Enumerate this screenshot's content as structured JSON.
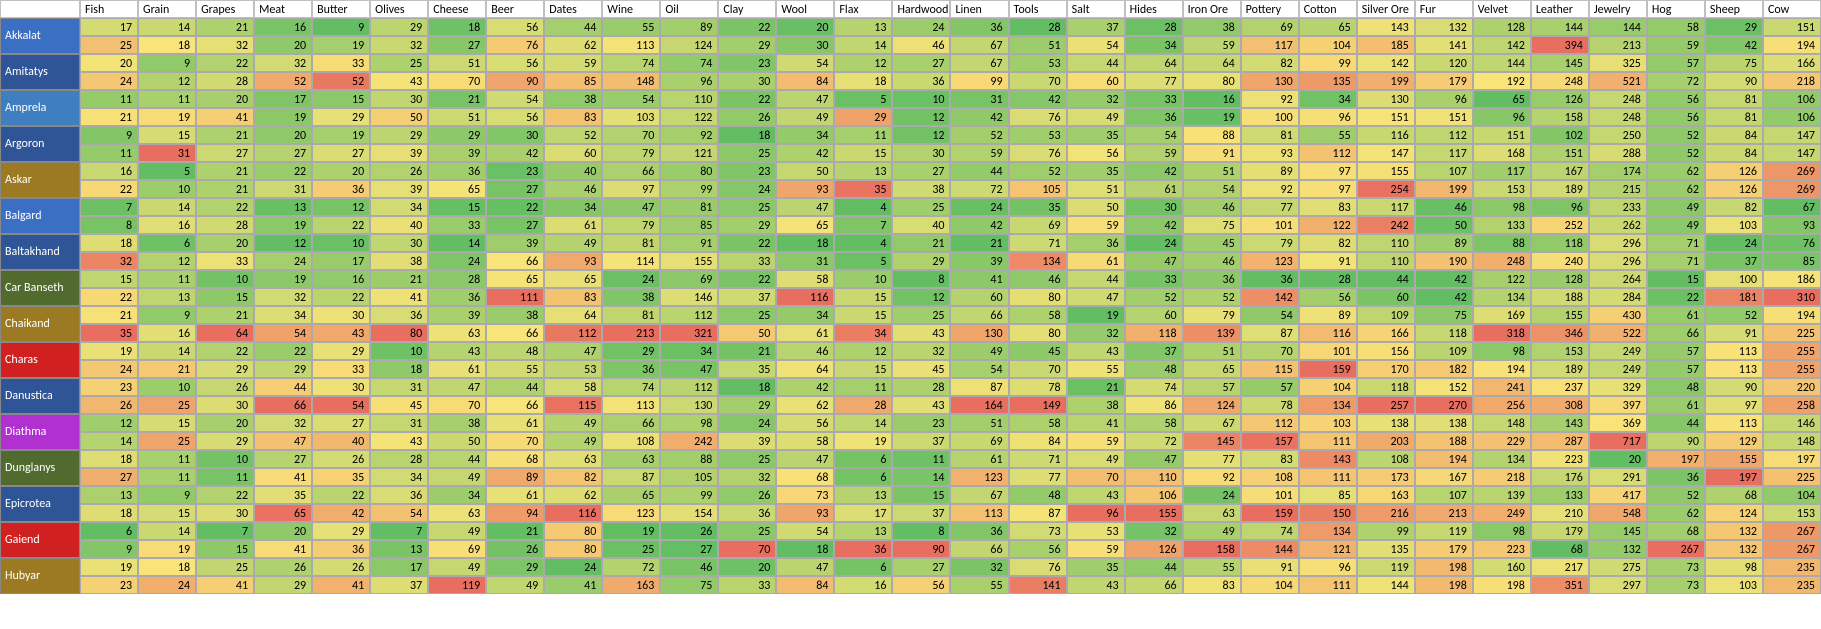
{
  "columns": [
    "Fish",
    "Grain",
    "Grapes",
    "Meat",
    "Butter",
    "Olives",
    "Cheese",
    "Beer",
    "Dates",
    "Wine",
    "Oil",
    "Clay",
    "Wool",
    "Flax",
    "Hardwood",
    "Linen",
    "Tools",
    "Salt",
    "Hides",
    "Iron Ore",
    "Pottery",
    "Cotton",
    "Silver Ore",
    "Fur",
    "Velvet",
    "Leather",
    "Jewelry",
    "Hog",
    "Sheep",
    "Cow"
  ],
  "row_colors": {
    "Akkalat": "#3b6fc4",
    "Amitatys": "#2f5597",
    "Amprela": "#3f7fbf",
    "Argoron": "#2f5597",
    "Askar": "#9c7a24",
    "Balgard": "#3b6fc4",
    "Baltakhand": "#2f5597",
    "Car Banseth": "#516b2f",
    "Chaikand": "#9c7a24",
    "Charas": "#d02020",
    "Danustica": "#2f5597",
    "Diathma": "#b030d0",
    "Dunglanys": "#516b2f",
    "Epicrotea": "#2f5597",
    "Gaiend": "#d02020",
    "Hubyar": "#9c7a24"
  },
  "heat_palette": {
    "low": [
      99,
      190,
      99
    ],
    "mid": [
      248,
      228,
      120
    ],
    "high": [
      232,
      110,
      95
    ]
  },
  "rows": [
    {
      "name": "Akkalat",
      "a": [
        17,
        14,
        21,
        16,
        9,
        29,
        18,
        56,
        44,
        55,
        89,
        22,
        20,
        13,
        24,
        36,
        28,
        37,
        28,
        38,
        69,
        65,
        143,
        132,
        128,
        144,
        144,
        58,
        29,
        151
      ],
      "b": [
        25,
        18,
        32,
        20,
        19,
        32,
        27,
        76,
        62,
        113,
        124,
        29,
        30,
        14,
        46,
        67,
        51,
        54,
        34,
        59,
        117,
        104,
        185,
        141,
        142,
        394,
        213,
        59,
        42,
        194
      ]
    },
    {
      "name": "Amitatys",
      "a": [
        20,
        9,
        22,
        32,
        33,
        25,
        51,
        56,
        59,
        74,
        74,
        23,
        54,
        12,
        27,
        67,
        53,
        44,
        64,
        64,
        82,
        99,
        142,
        120,
        144,
        145,
        325,
        57,
        75,
        166
      ],
      "b": [
        24,
        12,
        28,
        52,
        52,
        43,
        70,
        90,
        85,
        148,
        96,
        30,
        84,
        18,
        36,
        99,
        70,
        60,
        77,
        80,
        130,
        135,
        199,
        179,
        192,
        248,
        521,
        72,
        90,
        218
      ]
    },
    {
      "name": "Amprela",
      "a": [
        11,
        11,
        20,
        17,
        15,
        30,
        21,
        54,
        38,
        54,
        110,
        22,
        47,
        5,
        10,
        31,
        42,
        32,
        33,
        16,
        92,
        34,
        130,
        96,
        65,
        126,
        248,
        56,
        81,
        106
      ],
      "b": [
        21,
        19,
        41,
        19,
        29,
        50,
        51,
        56,
        83,
        103,
        122,
        26,
        49,
        29,
        12,
        42,
        76,
        49,
        36,
        19,
        100,
        96,
        151,
        151,
        96,
        158,
        248,
        56,
        81,
        106
      ]
    },
    {
      "name": "Argoron",
      "a": [
        9,
        15,
        21,
        20,
        19,
        29,
        29,
        30,
        52,
        70,
        92,
        18,
        34,
        11,
        12,
        52,
        53,
        35,
        54,
        88,
        81,
        55,
        116,
        112,
        151,
        102,
        250,
        52,
        84,
        147
      ],
      "b": [
        11,
        31,
        27,
        27,
        27,
        39,
        39,
        42,
        60,
        79,
        121,
        25,
        42,
        15,
        30,
        59,
        76,
        56,
        59,
        91,
        93,
        112,
        147,
        117,
        168,
        151,
        288,
        52,
        84,
        147
      ]
    },
    {
      "name": "Askar",
      "a": [
        16,
        5,
        21,
        22,
        20,
        26,
        36,
        23,
        40,
        66,
        80,
        23,
        50,
        13,
        27,
        44,
        52,
        35,
        42,
        51,
        89,
        97,
        155,
        107,
        117,
        167,
        174,
        62,
        126,
        269
      ],
      "b": [
        22,
        10,
        21,
        31,
        36,
        39,
        65,
        27,
        46,
        97,
        99,
        24,
        93,
        35,
        38,
        72,
        105,
        51,
        61,
        54,
        92,
        97,
        254,
        199,
        153,
        189,
        215,
        62,
        126,
        269
      ]
    },
    {
      "name": "Balgard",
      "a": [
        7,
        14,
        22,
        13,
        12,
        34,
        15,
        22,
        34,
        47,
        81,
        25,
        47,
        4,
        25,
        24,
        35,
        50,
        30,
        46,
        77,
        83,
        117,
        46,
        98,
        96,
        233,
        49,
        82,
        67
      ],
      "b": [
        8,
        16,
        28,
        19,
        22,
        40,
        33,
        27,
        61,
        79,
        85,
        29,
        65,
        7,
        40,
        42,
        69,
        59,
        42,
        75,
        101,
        122,
        242,
        50,
        133,
        252,
        262,
        49,
        103,
        93
      ]
    },
    {
      "name": "Baltakhand",
      "a": [
        18,
        6,
        20,
        12,
        10,
        30,
        14,
        39,
        49,
        81,
        91,
        22,
        18,
        4,
        21,
        21,
        71,
        36,
        24,
        45,
        79,
        82,
        110,
        89,
        88,
        118,
        296,
        71,
        24,
        76
      ],
      "b": [
        32,
        12,
        33,
        24,
        17,
        38,
        24,
        66,
        93,
        114,
        155,
        33,
        31,
        5,
        29,
        39,
        134,
        61,
        47,
        46,
        123,
        91,
        110,
        190,
        248,
        240,
        296,
        71,
        37,
        85
      ]
    },
    {
      "name": "Car Banseth",
      "a": [
        15,
        11,
        10,
        19,
        16,
        21,
        28,
        65,
        65,
        24,
        69,
        22,
        58,
        10,
        8,
        41,
        46,
        44,
        33,
        36,
        36,
        28,
        44,
        42,
        122,
        128,
        264,
        15,
        100,
        186
      ],
      "b": [
        22,
        13,
        15,
        32,
        22,
        41,
        36,
        111,
        83,
        38,
        146,
        37,
        116,
        15,
        12,
        60,
        80,
        47,
        52,
        52,
        142,
        56,
        60,
        42,
        134,
        188,
        284,
        22,
        181,
        310
      ]
    },
    {
      "name": "Chaikand",
      "a": [
        21,
        9,
        21,
        34,
        30,
        36,
        39,
        38,
        64,
        81,
        112,
        25,
        34,
        15,
        25,
        66,
        58,
        19,
        60,
        79,
        54,
        89,
        109,
        75,
        169,
        155,
        430,
        61,
        52,
        194
      ],
      "b": [
        35,
        16,
        64,
        54,
        43,
        80,
        63,
        66,
        112,
        213,
        321,
        50,
        61,
        34,
        43,
        130,
        80,
        32,
        118,
        139,
        87,
        116,
        166,
        118,
        318,
        346,
        522,
        66,
        91,
        225
      ]
    },
    {
      "name": "Charas",
      "a": [
        19,
        14,
        22,
        22,
        29,
        10,
        43,
        48,
        47,
        29,
        34,
        21,
        46,
        12,
        32,
        49,
        45,
        43,
        37,
        51,
        70,
        101,
        156,
        109,
        98,
        153,
        249,
        57,
        113,
        255
      ],
      "b": [
        24,
        21,
        29,
        29,
        33,
        18,
        61,
        55,
        53,
        36,
        47,
        35,
        64,
        15,
        45,
        54,
        70,
        55,
        48,
        65,
        115,
        159,
        170,
        182,
        194,
        189,
        249,
        57,
        113,
        255
      ]
    },
    {
      "name": "Danustica",
      "a": [
        23,
        10,
        26,
        44,
        30,
        31,
        47,
        44,
        58,
        74,
        112,
        18,
        42,
        11,
        28,
        87,
        78,
        21,
        74,
        57,
        57,
        104,
        118,
        152,
        241,
        237,
        329,
        48,
        90,
        220
      ],
      "b": [
        26,
        25,
        30,
        66,
        54,
        45,
        70,
        66,
        115,
        113,
        130,
        29,
        62,
        28,
        43,
        164,
        149,
        38,
        86,
        124,
        78,
        134,
        257,
        270,
        256,
        308,
        397,
        61,
        97,
        258
      ]
    },
    {
      "name": "Diathma",
      "a": [
        12,
        15,
        20,
        32,
        27,
        31,
        38,
        61,
        49,
        66,
        98,
        24,
        56,
        14,
        23,
        51,
        58,
        41,
        58,
        67,
        112,
        103,
        138,
        138,
        148,
        143,
        369,
        44,
        113,
        146
      ],
      "b": [
        14,
        25,
        29,
        47,
        40,
        43,
        50,
        70,
        49,
        108,
        242,
        39,
        58,
        19,
        37,
        69,
        84,
        59,
        72,
        145,
        157,
        111,
        203,
        188,
        229,
        287,
        717,
        90,
        129,
        148
      ]
    },
    {
      "name": "Dunglanys",
      "a": [
        18,
        11,
        10,
        27,
        26,
        28,
        44,
        68,
        63,
        63,
        88,
        25,
        47,
        6,
        11,
        61,
        71,
        49,
        47,
        77,
        83,
        143,
        108,
        194,
        134,
        223,
        20,
        197,
        155,
        197
      ],
      "b": [
        27,
        11,
        11,
        41,
        35,
        34,
        49,
        89,
        82,
        87,
        105,
        32,
        68,
        6,
        14,
        123,
        77,
        70,
        110,
        92,
        108,
        111,
        173,
        167,
        218,
        176,
        291,
        36,
        197,
        225
      ]
    },
    {
      "name": "Epicrotea",
      "a": [
        13,
        9,
        22,
        35,
        22,
        36,
        34,
        61,
        62,
        65,
        99,
        26,
        73,
        13,
        15,
        67,
        48,
        43,
        106,
        24,
        101,
        85,
        163,
        107,
        139,
        133,
        417,
        52,
        68,
        104
      ],
      "b": [
        18,
        15,
        30,
        65,
        42,
        54,
        63,
        94,
        116,
        123,
        154,
        36,
        93,
        17,
        37,
        113,
        87,
        96,
        155,
        63,
        159,
        150,
        216,
        213,
        249,
        210,
        548,
        62,
        124,
        153
      ]
    },
    {
      "name": "Gaiend",
      "a": [
        6,
        14,
        7,
        20,
        29,
        7,
        49,
        21,
        80,
        19,
        26,
        25,
        54,
        13,
        8,
        36,
        73,
        53,
        32,
        49,
        74,
        134,
        99,
        119,
        98,
        179,
        145,
        68,
        132,
        267
      ],
      "b": [
        9,
        19,
        15,
        41,
        36,
        13,
        69,
        26,
        80,
        25,
        27,
        70,
        18,
        36,
        90,
        66,
        56,
        59,
        126,
        158,
        144,
        121,
        135,
        179,
        223,
        68,
        132,
        267,
        132,
        267
      ]
    },
    {
      "name": "Hubyar",
      "a": [
        19,
        18,
        25,
        26,
        26,
        17,
        49,
        29,
        24,
        72,
        46,
        20,
        47,
        6,
        27,
        32,
        76,
        35,
        44,
        55,
        91,
        96,
        119,
        198,
        160,
        217,
        275,
        73,
        98,
        235
      ],
      "b": [
        23,
        24,
        41,
        29,
        41,
        37,
        119,
        49,
        41,
        163,
        75,
        33,
        84,
        16,
        56,
        55,
        141,
        43,
        66,
        83,
        104,
        111,
        144,
        198,
        198,
        351,
        297,
        73,
        103,
        235
      ]
    }
  ]
}
